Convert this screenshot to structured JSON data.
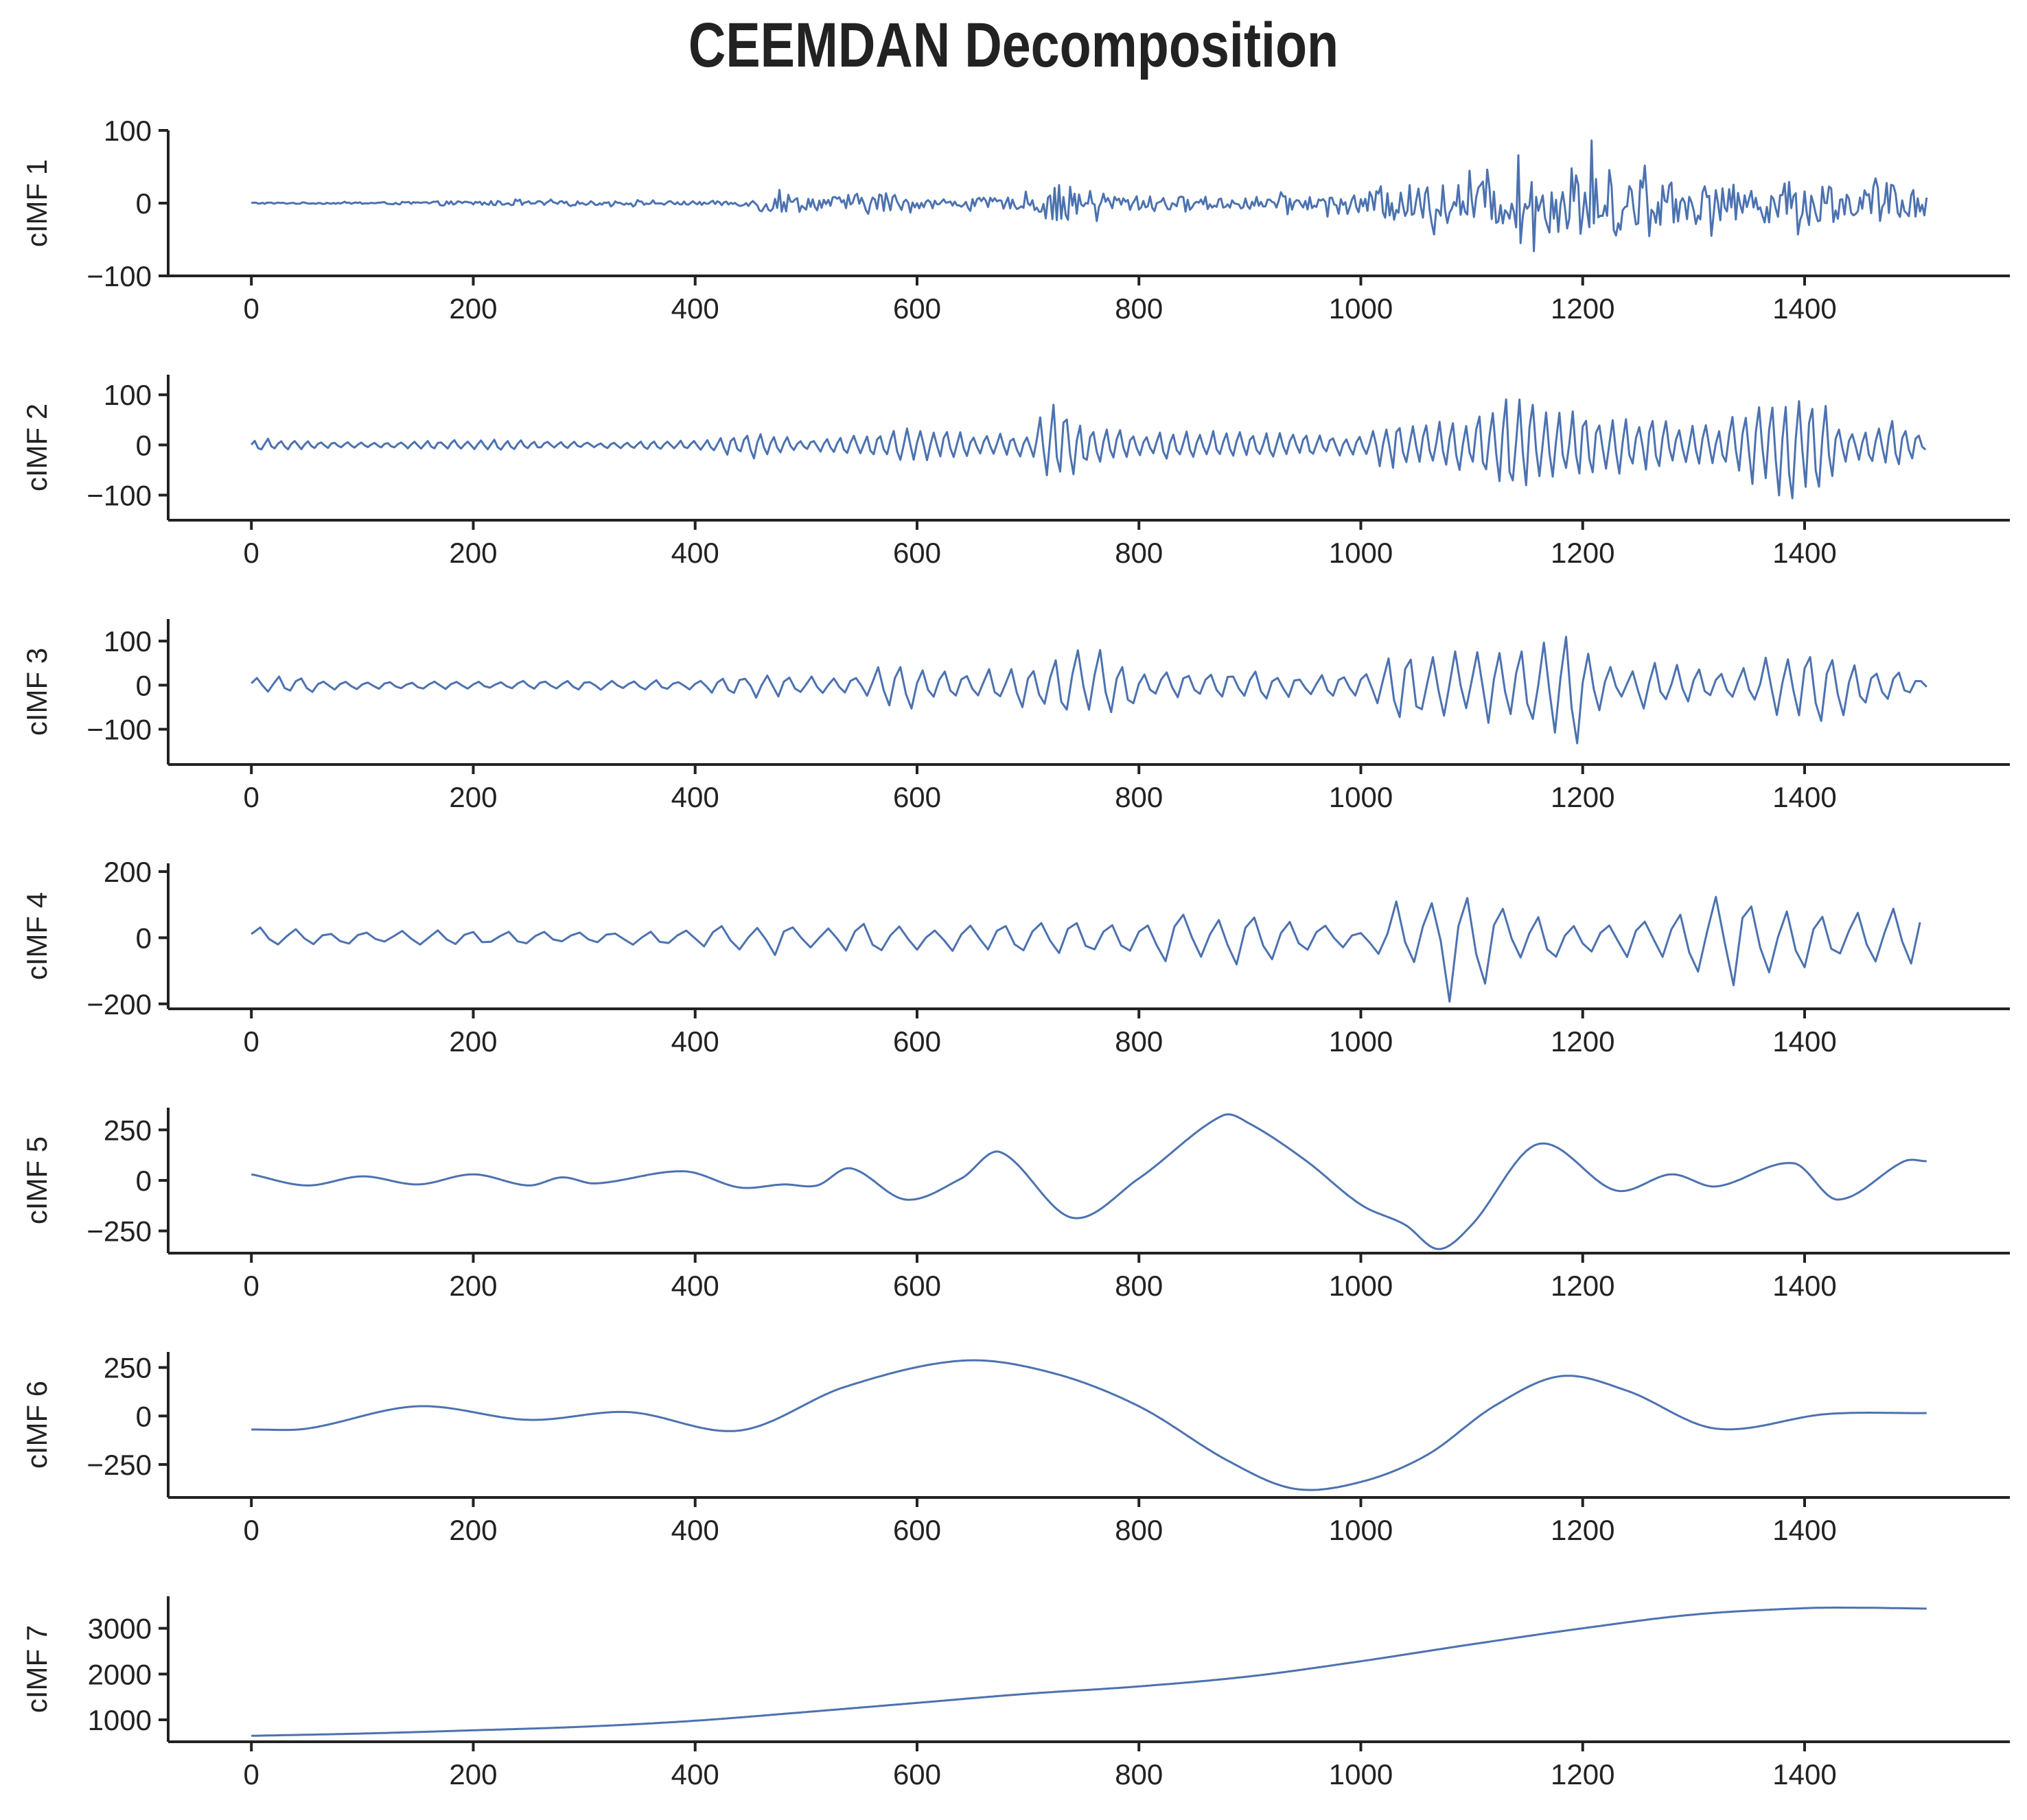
{
  "title": "CEEMDAN Decomposition",
  "colors": {
    "line": "#4c72b0",
    "axis": "#222222",
    "background": "#ffffff"
  },
  "chart_data": [
    {
      "type": "line",
      "ylabel": "cIMF 1",
      "xlim": [
        -75,
        1585
      ],
      "ylim": [
        -100,
        100
      ],
      "xticks": [
        0,
        200,
        400,
        600,
        800,
        1000,
        1200,
        1400
      ],
      "yticks": [
        -100,
        0,
        100
      ],
      "ytick_labels": [
        "−100",
        "0",
        "100"
      ],
      "grid": false,
      "x": [
        0,
        100,
        200,
        300,
        400,
        455,
        460,
        520,
        560,
        580,
        600,
        700,
        720,
        760,
        800,
        900,
        1000,
        1020,
        1080,
        1120,
        1170,
        1200,
        1220,
        1240,
        1300,
        1360,
        1400,
        1410,
        1440,
        1480,
        1510
      ],
      "series": [
        {
          "envelope": [
            2,
            2,
            6,
            5,
            5,
            8,
            30,
            16,
            28,
            24,
            10,
            16,
            50,
            30,
            18,
            16,
            20,
            45,
            50,
            60,
            75,
            85,
            95,
            70,
            45,
            48,
            58,
            62,
            35,
            55,
            35
          ]
        }
      ]
    },
    {
      "type": "line",
      "ylabel": "cIMF 2",
      "xlim": [
        -75,
        1585
      ],
      "ylim": [
        -150,
        140
      ],
      "xticks": [
        0,
        200,
        400,
        600,
        800,
        1000,
        1200,
        1400
      ],
      "yticks": [
        -100,
        0,
        100
      ],
      "ytick_labels": [
        "−100",
        "0",
        "100"
      ],
      "grid": false,
      "x": [
        0,
        15,
        30,
        100,
        200,
        300,
        400,
        455,
        500,
        540,
        560,
        580,
        620,
        660,
        700,
        720,
        730,
        760,
        800,
        900,
        950,
        1000,
        1020,
        1060,
        1100,
        1140,
        1150,
        1200,
        1260,
        1300,
        1340,
        1380,
        1400,
        1410,
        1440,
        1480,
        1510
      ],
      "series": [
        {
          "envelope": [
            10,
            16,
            10,
            5,
            12,
            6,
            10,
            28,
            12,
            18,
            30,
            38,
            30,
            26,
            24,
            100,
            90,
            36,
            28,
            30,
            24,
            20,
            55,
            45,
            58,
            115,
            100,
            70,
            55,
            52,
            60,
            125,
            130,
            100,
            30,
            55,
            15
          ]
        }
      ]
    },
    {
      "type": "line",
      "ylabel": "cIMF 3",
      "xlim": [
        -75,
        1585
      ],
      "ylim": [
        -180,
        150
      ],
      "xticks": [
        0,
        200,
        400,
        600,
        800,
        1000,
        1200,
        1400
      ],
      "yticks": [
        -100,
        0,
        100
      ],
      "ytick_labels": [
        "−100",
        "0",
        "100"
      ],
      "grid": false,
      "x": [
        0,
        15,
        100,
        200,
        300,
        400,
        430,
        460,
        500,
        540,
        560,
        570,
        590,
        620,
        660,
        700,
        720,
        740,
        760,
        780,
        820,
        860,
        900,
        950,
        1000,
        1030,
        1060,
        1080,
        1120,
        1140,
        1160,
        1180,
        1190,
        1200,
        1230,
        1260,
        1300,
        1340,
        1380,
        1400,
        1410,
        1440,
        1480,
        1510
      ],
      "series": [
        {
          "envelope": [
            20,
            22,
            10,
            10,
            12,
            12,
            25,
            30,
            22,
            20,
            40,
            70,
            65,
            35,
            35,
            60,
            50,
            100,
            90,
            80,
            30,
            35,
            35,
            25,
            30,
            100,
            95,
            90,
            90,
            115,
            110,
            125,
            180,
            110,
            40,
            60,
            45,
            40,
            80,
            110,
            115,
            60,
            40,
            10
          ]
        }
      ]
    },
    {
      "type": "line",
      "ylabel": "cIMF 4",
      "xlim": [
        -75,
        1585
      ],
      "ylim": [
        -215,
        225
      ],
      "xticks": [
        0,
        200,
        400,
        600,
        800,
        1000,
        1200,
        1400
      ],
      "yticks": [
        -200,
        0,
        200
      ],
      "ytick_labels": [
        "−200",
        "0",
        "200"
      ],
      "grid": false,
      "x": [
        0,
        20,
        100,
        200,
        300,
        400,
        460,
        520,
        560,
        580,
        620,
        680,
        700,
        720,
        740,
        800,
        840,
        860,
        880,
        920,
        960,
        1000,
        1030,
        1045,
        1065,
        1080,
        1110,
        1140,
        1200,
        1260,
        1300,
        1330,
        1360,
        1380,
        1400,
        1430,
        1470,
        1490,
        1510
      ],
      "series": [
        {
          "envelope": [
            40,
            30,
            20,
            25,
            20,
            30,
            55,
            50,
            45,
            45,
            35,
            65,
            65,
            65,
            60,
            70,
            80,
            95,
            90,
            70,
            40,
            30,
            120,
            125,
            195,
            210,
            150,
            100,
            65,
            60,
            120,
            175,
            180,
            140,
            125,
            70,
            110,
            110,
            110
          ]
        }
      ]
    },
    {
      "type": "line",
      "ylabel": "cIMF 5",
      "xlim": [
        -75,
        1585
      ],
      "ylim": [
        -360,
        360
      ],
      "xticks": [
        0,
        200,
        400,
        600,
        800,
        1000,
        1200,
        1400
      ],
      "yticks": [
        -250,
        0,
        250
      ],
      "ytick_labels": [
        "−250",
        "0",
        "250"
      ],
      "grid": false,
      "x": [
        0,
        50,
        100,
        150,
        200,
        250,
        280,
        310,
        390,
        440,
        480,
        510,
        540,
        590,
        640,
        675,
        740,
        800,
        875,
        900,
        950,
        1000,
        1040,
        1070,
        1100,
        1160,
        1230,
        1280,
        1320,
        1390,
        1430,
        1490,
        1510
      ],
      "series": [
        {
          "values": [
            30,
            -25,
            20,
            -20,
            30,
            -25,
            15,
            -15,
            45,
            -35,
            -20,
            -25,
            60,
            -95,
            10,
            140,
            -185,
            10,
            320,
            280,
            100,
            -120,
            -220,
            -340,
            -220,
            180,
            -50,
            30,
            -30,
            85,
            -95,
            95,
            95
          ]
        }
      ]
    },
    {
      "type": "line",
      "ylabel": "cIMF 6",
      "xlim": [
        -75,
        1585
      ],
      "ylim": [
        -420,
        330
      ],
      "xticks": [
        0,
        200,
        400,
        600,
        800,
        1000,
        1200,
        1400
      ],
      "yticks": [
        -250,
        0,
        250
      ],
      "ytick_labels": [
        "−250",
        "0",
        "250"
      ],
      "grid": false,
      "x": [
        0,
        50,
        150,
        250,
        340,
        440,
        535,
        640,
        720,
        800,
        880,
        940,
        1000,
        1060,
        1120,
        1180,
        1240,
        1320,
        1420,
        1510
      ],
      "series": [
        {
          "values": [
            -70,
            -65,
            50,
            -20,
            20,
            -75,
            150,
            285,
            225,
            50,
            -230,
            -375,
            -340,
            -200,
            50,
            205,
            130,
            -65,
            10,
            15
          ]
        }
      ]
    },
    {
      "type": "line",
      "ylabel": "cIMF 7",
      "xlim": [
        -75,
        1585
      ],
      "ylim": [
        520,
        3700
      ],
      "xticks": [
        0,
        200,
        400,
        600,
        800,
        1000,
        1200,
        1400
      ],
      "yticks": [
        1000,
        2000,
        3000
      ],
      "ytick_labels": [
        "1000",
        "2000",
        "3000"
      ],
      "grid": false,
      "x": [
        0,
        100,
        200,
        300,
        400,
        500,
        600,
        700,
        800,
        900,
        1000,
        1100,
        1200,
        1300,
        1400,
        1450,
        1510
      ],
      "series": [
        {
          "values": [
            650,
            700,
            770,
            850,
            980,
            1170,
            1370,
            1570,
            1730,
            1950,
            2280,
            2650,
            3000,
            3300,
            3440,
            3450,
            3430
          ]
        }
      ]
    }
  ]
}
